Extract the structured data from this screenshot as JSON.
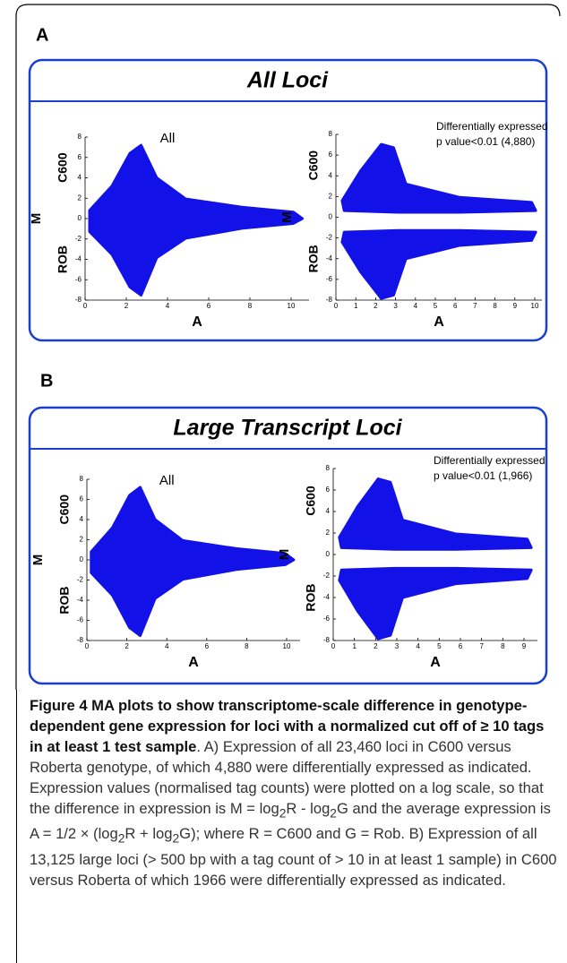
{
  "figure": {
    "panels": [
      {
        "label": "A",
        "title": "All Loci",
        "plots": [
          {
            "annotation": [
              "All"
            ],
            "y_top": "C600",
            "y_mid": "M",
            "y_bottom": "ROB",
            "xlabel": "A",
            "xticks": [
              0,
              2,
              4,
              6,
              8,
              10
            ],
            "yticks": [
              -8,
              -6,
              -4,
              -2,
              0,
              2,
              4,
              6,
              8
            ]
          },
          {
            "annotation": [
              "Differentially expressed",
              "p value<0.01 (4,880)"
            ],
            "y_top": "C600",
            "y_mid": "M",
            "y_bottom": "ROB",
            "xlabel": "A",
            "xticks": [
              0,
              1,
              2,
              3,
              4,
              5,
              6,
              7,
              8,
              9,
              10
            ],
            "yticks": [
              -8,
              -6,
              -4,
              -2,
              0,
              2,
              4,
              6,
              8
            ]
          }
        ]
      },
      {
        "label": "B",
        "title": "Large Transcript Loci",
        "plots": [
          {
            "annotation": [
              "All"
            ],
            "y_top": "C600",
            "y_mid": "M",
            "y_bottom": "ROB",
            "xlabel": "A",
            "xticks": [
              0,
              2,
              4,
              6,
              8,
              10
            ],
            "yticks": [
              -8,
              -6,
              -4,
              -2,
              0,
              2,
              4,
              6,
              8
            ]
          },
          {
            "annotation": [
              "Differentially expressed",
              "p value<0.01 (1,966)"
            ],
            "y_top": "C600",
            "y_mid": "M",
            "y_bottom": "ROB",
            "xlabel": "A",
            "xticks": [
              0,
              1,
              2,
              3,
              4,
              5,
              6,
              7,
              8,
              9
            ],
            "yticks": [
              -8,
              -6,
              -4,
              -2,
              0,
              2,
              4,
              6,
              8
            ]
          }
        ]
      }
    ],
    "caption": {
      "label": "Figure 4",
      "title": "MA plots to show transcriptome-scale difference in genotype-dependent gene expression for loci with a normalized cut off of ≥ 10 tags in at least 1 test sample",
      "body": [
        ". A) Expression of all 23,460 loci in C600 versus Roberta genotype, of which 4,880 were differentially expressed as indicated. Expression values (normalised tag counts) were plotted on a log scale, so that the difference in expression is M = log",
        "2",
        "R - log",
        "2",
        "G and the average expression is A = 1/2 × (log",
        "2",
        "R + log",
        "2",
        "G); where R = C600 and G = Rob. B) Expression of all 13,125 large loci (> 500 bp with a tag count of > 10 in at least 1 sample) in C600 versus Roberta of which 1966 were differentially expressed as indicated."
      ]
    }
  }
}
